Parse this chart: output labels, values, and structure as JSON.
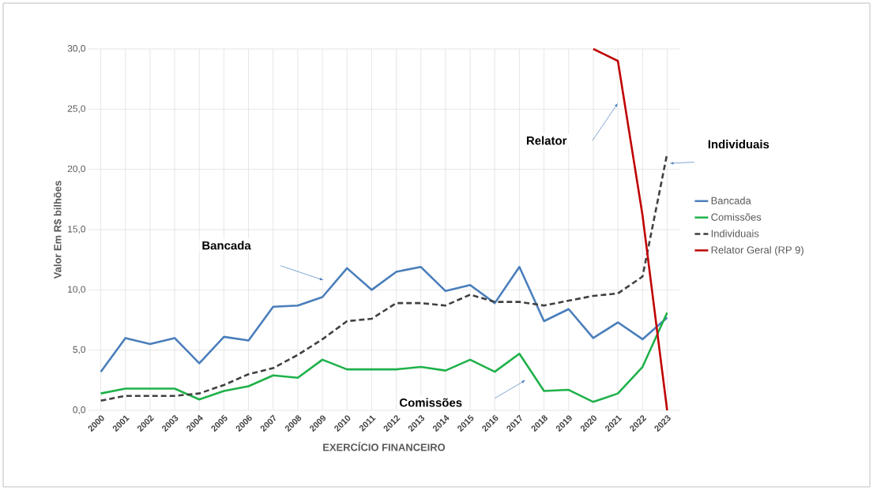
{
  "chart_data": {
    "type": "line",
    "xlabel": "EXERCÍCIO FINANCEIRO",
    "ylabel": "Valor Em R$ bilhões",
    "categories": [
      "2000",
      "2001",
      "2002",
      "2003",
      "2004",
      "2005",
      "2006",
      "2007",
      "2008",
      "2009",
      "2010",
      "2011",
      "2012",
      "2013",
      "2014",
      "2015",
      "2016",
      "2017",
      "2018",
      "2019",
      "2020",
      "2021",
      "2022",
      "2023"
    ],
    "series": [
      {
        "name": "Bancada",
        "color": "#4a7ebb",
        "line_style": "solid",
        "values": [
          3.2,
          6.0,
          5.5,
          6.0,
          3.9,
          6.1,
          5.8,
          8.6,
          8.7,
          9.4,
          11.8,
          10.0,
          11.5,
          11.9,
          9.9,
          10.4,
          8.9,
          11.9,
          7.4,
          8.4,
          6.0,
          7.3,
          5.9,
          7.7
        ]
      },
      {
        "name": "Comissões",
        "color": "#1fb14a",
        "line_style": "solid",
        "values": [
          1.4,
          1.8,
          1.8,
          1.8,
          0.9,
          1.6,
          2.0,
          2.9,
          2.7,
          4.2,
          3.4,
          3.4,
          3.4,
          3.6,
          3.3,
          4.2,
          3.2,
          4.7,
          1.6,
          1.7,
          0.7,
          1.4,
          3.6,
          8.1
        ]
      },
      {
        "name": "Individuais",
        "color": "#404040",
        "line_style": "dashed",
        "values": [
          0.8,
          1.2,
          1.2,
          1.2,
          1.4,
          2.1,
          3.0,
          3.5,
          4.6,
          5.9,
          7.4,
          7.6,
          8.9,
          8.9,
          8.7,
          9.6,
          9.0,
          9.0,
          8.7,
          9.1,
          9.5,
          9.7,
          11.1,
          21.3
        ]
      },
      {
        "name": "Relator Geral (RP 9)",
        "color": "#c00000",
        "line_style": "solid",
        "values": [
          null,
          null,
          null,
          null,
          null,
          null,
          null,
          null,
          null,
          null,
          null,
          null,
          null,
          null,
          null,
          null,
          null,
          null,
          null,
          null,
          30.0,
          29.0,
          16.2,
          0
        ]
      }
    ],
    "ylim": [
      0,
      30
    ],
    "yticks": [
      {
        "value": 0,
        "label": "0,0"
      },
      {
        "value": 5,
        "label": "5,0"
      },
      {
        "value": 10,
        "label": "10,0"
      },
      {
        "value": 15,
        "label": "15,0"
      },
      {
        "value": 20,
        "label": "20,0"
      },
      {
        "value": 25,
        "label": "25,0"
      },
      {
        "value": 30,
        "label": "30,0"
      }
    ],
    "grid": true,
    "legend": "right",
    "marker": "none",
    "annotations": [
      "Bancada",
      "Comissões",
      "Relator",
      "Individuais"
    ]
  }
}
